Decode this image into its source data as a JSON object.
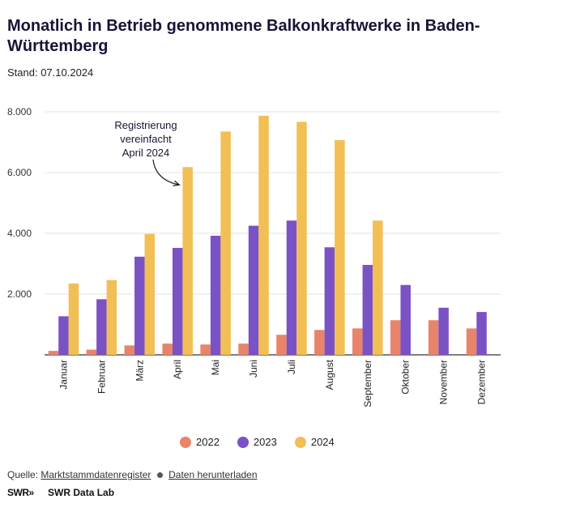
{
  "header": {
    "title": "Monatlich in Betrieb genommene Balkonkraftwerke in Baden-Württemberg",
    "subtitle": "Stand: 07.10.2024"
  },
  "chart_data": {
    "type": "bar",
    "categories": [
      "Januar",
      "Februar",
      "März",
      "April",
      "Mai",
      "Juni",
      "Juli",
      "August",
      "September",
      "Oktober",
      "November",
      "Dezember"
    ],
    "series": [
      {
        "name": "2022",
        "color": "#e8846a",
        "values": [
          130,
          170,
          310,
          370,
          340,
          370,
          660,
          820,
          870,
          1140,
          1140,
          870
        ]
      },
      {
        "name": "2023",
        "color": "#7b52c5",
        "values": [
          1270,
          1830,
          3230,
          3520,
          3920,
          4250,
          4420,
          3540,
          2960,
          2300,
          1550,
          1410
        ]
      },
      {
        "name": "2024",
        "color": "#f2bf55",
        "values": [
          2350,
          2460,
          3980,
          6180,
          7350,
          7870,
          7670,
          7070,
          4420,
          null,
          null,
          null
        ]
      }
    ],
    "yticks": [
      "2.000",
      "4.000",
      "6.000",
      "8.000"
    ],
    "ylim": [
      0,
      8000
    ],
    "grid": true,
    "legend_position": "bottom",
    "annotation": {
      "lines": [
        "Registrierung",
        "vereinfacht",
        "April 2024"
      ],
      "target_category": "April",
      "target_series": "2024"
    }
  },
  "footer": {
    "source_label": "Quelle:",
    "source_link": "Marktstammdatenregister",
    "download_link": "Daten herunterladen",
    "brand_logo": "SWR",
    "brand_name": "SWR Data Lab"
  }
}
